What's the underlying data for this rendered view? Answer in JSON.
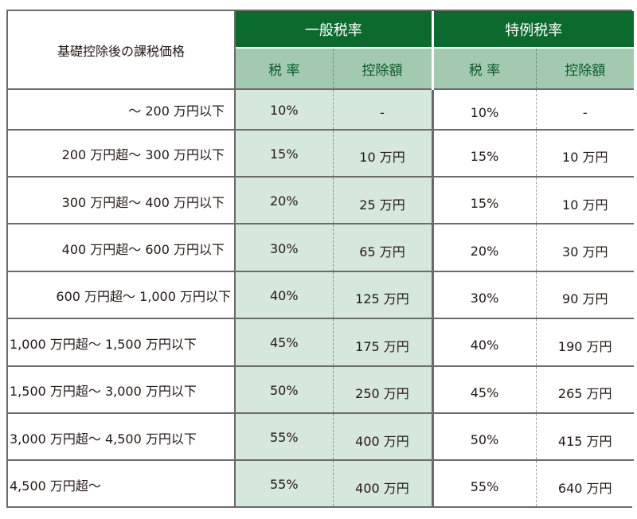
{
  "header": {
    "range_label": "基礎控除後の課税価格",
    "groups": [
      {
        "label": "一般税率",
        "rate_label": "税 率",
        "deduction_label": "控除額"
      },
      {
        "label": "特例税率",
        "rate_label": "税 率",
        "deduction_label": "控除額"
      }
    ]
  },
  "rows": [
    {
      "range": "～ 200 万円以下",
      "general_rate": "10%",
      "general_deduction": "-",
      "special_rate": "10%",
      "special_deduction": "-"
    },
    {
      "range": "200 万円超～ 300 万円以下",
      "general_rate": "15%",
      "general_deduction": "10 万円",
      "special_rate": "15%",
      "special_deduction": "10 万円"
    },
    {
      "range": "300 万円超～ 400 万円以下",
      "general_rate": "20%",
      "general_deduction": "25 万円",
      "special_rate": "15%",
      "special_deduction": "10 万円"
    },
    {
      "range": "400 万円超～ 600 万円以下",
      "general_rate": "30%",
      "general_deduction": "65 万円",
      "special_rate": "20%",
      "special_deduction": "30 万円"
    },
    {
      "range": "600 万円超～ 1,000 万円以下",
      "general_rate": "40%",
      "general_deduction": "125 万円",
      "special_rate": "30%",
      "special_deduction": "90 万円"
    },
    {
      "range": "1,000 万円超～ 1,500 万円以下",
      "general_rate": "45%",
      "general_deduction": "175 万円",
      "special_rate": "40%",
      "special_deduction": "190 万円"
    },
    {
      "range": "1,500 万円超～ 3,000 万円以下",
      "general_rate": "50%",
      "general_deduction": "250 万円",
      "special_rate": "45%",
      "special_deduction": "265 万円"
    },
    {
      "range": "3,000 万円超～ 4,500 万円以下",
      "general_rate": "55%",
      "general_deduction": "400 万円",
      "special_rate": "50%",
      "special_deduction": "415 万円"
    },
    {
      "range": "4,500 万円超～",
      "general_rate": "55%",
      "general_deduction": "400 万円",
      "special_rate": "55%",
      "special_deduction": "640 万円"
    }
  ],
  "colors": {
    "header_green": "#0d6a2f",
    "subheader_green": "#a3c9b1",
    "general_cell_tint": "#d6e7dc",
    "border_gray": "#6b6b6b"
  }
}
